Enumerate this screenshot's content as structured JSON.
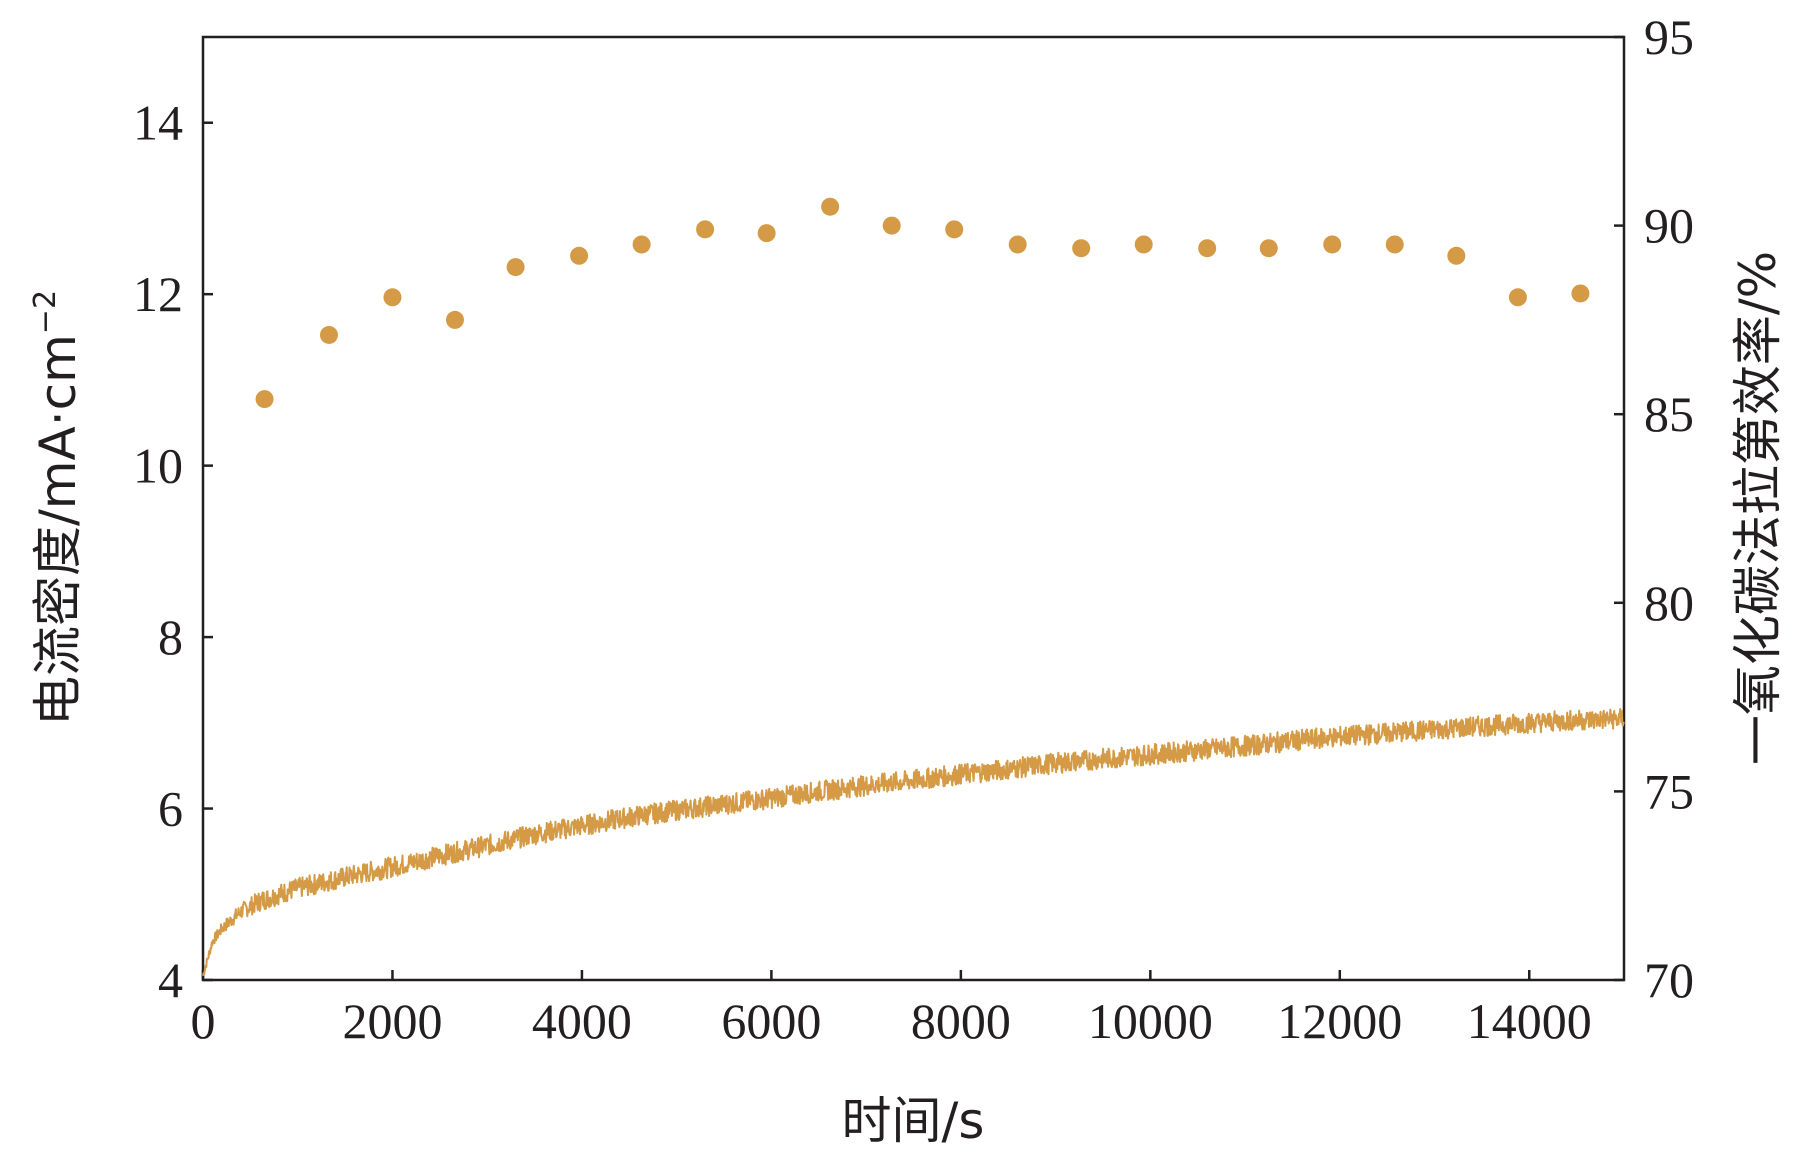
{
  "chart_data": {
    "type": "line",
    "title": "",
    "xlabel": "时间/s",
    "ylabel_left": "电流密度/mA·cm",
    "ylabel_left_superscript": "−2",
    "ylabel_right": "一氧化碳法拉第效率/%",
    "xlim": [
      0,
      15000
    ],
    "ylim_left": [
      4,
      15
    ],
    "ylim_right": [
      70,
      95
    ],
    "x_ticks": [
      0,
      2000,
      4000,
      6000,
      8000,
      10000,
      12000,
      14000
    ],
    "x_tick_labels": [
      "0",
      "2000",
      "4000",
      "6000",
      "8000",
      "10000",
      "12000",
      "14000"
    ],
    "y_left_ticks": [
      4,
      6,
      8,
      10,
      12,
      14
    ],
    "y_left_tick_labels": [
      "4",
      "6",
      "8",
      "10",
      "12",
      "14"
    ],
    "y_right_ticks": [
      70,
      75,
      80,
      85,
      90,
      95
    ],
    "y_right_tick_labels": [
      "70",
      "75",
      "80",
      "85",
      "90",
      "95"
    ],
    "color": "#d49a45",
    "series": [
      {
        "name": "电流密度",
        "axis": "left",
        "style": "noisy-line",
        "x": [
          0,
          100,
          200,
          400,
          600,
          800,
          1000,
          1500,
          2000,
          2500,
          3000,
          3500,
          4000,
          4500,
          5000,
          5500,
          6000,
          6500,
          7000,
          7500,
          8000,
          8500,
          9000,
          9500,
          10000,
          10500,
          11000,
          11500,
          12000,
          12500,
          13000,
          13500,
          14000,
          14500,
          15000
        ],
        "values": [
          4.05,
          4.45,
          4.6,
          4.8,
          4.92,
          5.0,
          5.07,
          5.2,
          5.32,
          5.45,
          5.57,
          5.7,
          5.8,
          5.9,
          5.98,
          6.05,
          6.12,
          6.2,
          6.27,
          6.33,
          6.4,
          6.46,
          6.53,
          6.58,
          6.63,
          6.68,
          6.73,
          6.79,
          6.84,
          6.88,
          6.92,
          6.96,
          7.0,
          7.03,
          7.05
        ],
        "noise_amplitude": 0.12
      },
      {
        "name": "一氧化碳法拉第效率",
        "axis": "right",
        "style": "scatter",
        "x": [
          650,
          1330,
          2000,
          2660,
          3300,
          3970,
          4630,
          5300,
          5950,
          6620,
          7270,
          7930,
          8600,
          9270,
          9930,
          10600,
          11250,
          11920,
          12580,
          13230,
          13880,
          14540
        ],
        "values": [
          85.4,
          87.1,
          88.1,
          87.5,
          88.9,
          89.2,
          89.5,
          89.9,
          89.8,
          90.5,
          90.0,
          89.9,
          89.5,
          89.4,
          89.5,
          89.4,
          89.4,
          89.5,
          89.5,
          89.2,
          88.1,
          88.2
        ]
      }
    ]
  }
}
